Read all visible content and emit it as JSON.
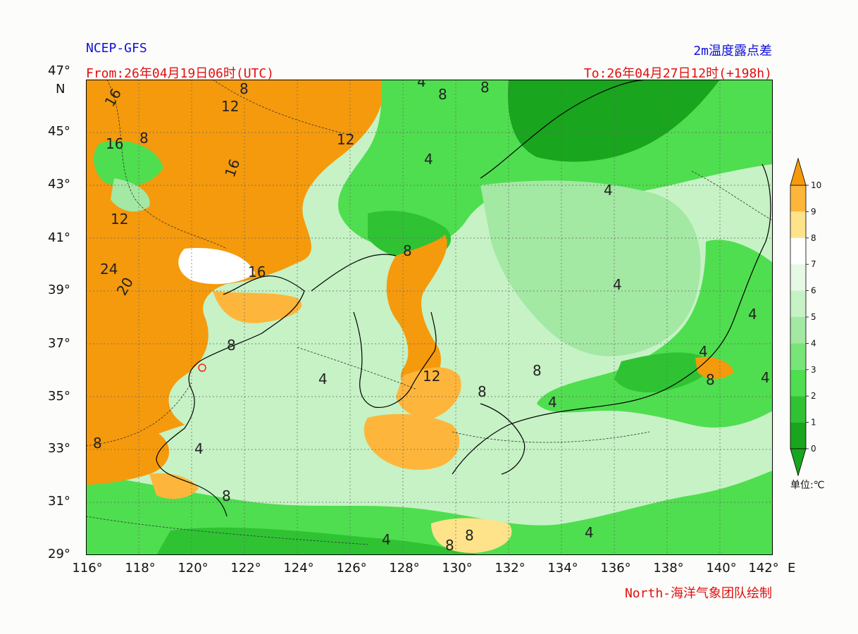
{
  "header": {
    "model": "NCEP-GFS",
    "product": "2m温度露点差",
    "from": "From:26年04月19日06时(UTC)",
    "to": "To:26年04月27日12时(+198h)",
    "credit": "North-海洋气象团队绘制"
  },
  "axes": {
    "lat_labels": [
      "47°",
      "45°",
      "43°",
      "41°",
      "39°",
      "37°",
      "35°",
      "33°",
      "31°",
      "29°"
    ],
    "lat_unit": "N",
    "lon_labels": [
      "116°",
      "118°",
      "120°",
      "122°",
      "124°",
      "126°",
      "128°",
      "130°",
      "132°",
      "134°",
      "136°",
      "138°",
      "140°",
      "142°"
    ],
    "lon_unit": "E",
    "lat_range": [
      29,
      47
    ],
    "lon_range": [
      116,
      142
    ],
    "grid": true
  },
  "contour_labels": [
    "16",
    "12",
    "8",
    "8",
    "8",
    "4",
    "8",
    "12",
    "16",
    "16",
    "12",
    "24",
    "20",
    "16",
    "4",
    "8",
    "4",
    "4",
    "8",
    "12",
    "4",
    "8",
    "8",
    "4",
    "4",
    "8",
    "4",
    "8",
    "4",
    "8",
    "8",
    "4",
    "8",
    "4",
    "4"
  ],
  "colorbar": {
    "levels": [
      "0",
      "1",
      "2",
      "3",
      "4",
      "5",
      "6",
      "7",
      "8",
      "9",
      "10"
    ],
    "colors": [
      "#19a51d",
      "#2fc334",
      "#4fde4f",
      "#78e579",
      "#a3e8a3",
      "#c6f2c5",
      "#e5f9e4",
      "#ffffff",
      "#ffe38a",
      "#fdb63b",
      "#f59a0c"
    ],
    "unit": "单位:℃"
  },
  "marker": {
    "color": "#ff2020"
  }
}
